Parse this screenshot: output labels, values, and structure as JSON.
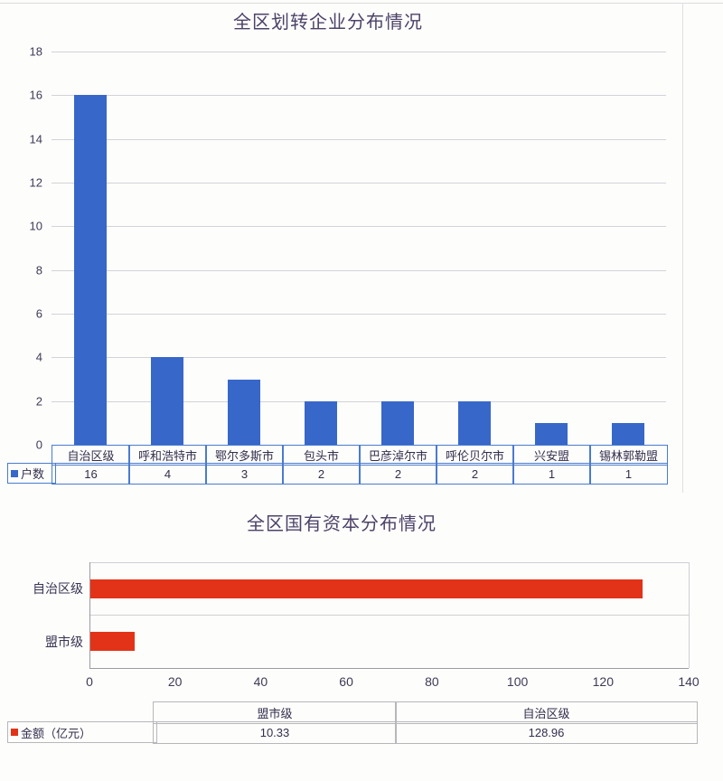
{
  "page": {
    "background": "#fdfdfc"
  },
  "chart_data": [
    {
      "type": "bar",
      "title": "全区划转企业分布情况",
      "categories": [
        "自治区级",
        "呼和浩特市",
        "鄂尔多斯市",
        "包头市",
        "巴彦淖尔市",
        "呼伦贝尔市",
        "兴安盟",
        "锡林郭勒盟"
      ],
      "series": [
        {
          "name": "户数",
          "values": [
            16,
            4,
            3,
            2,
            2,
            2,
            1,
            1
          ]
        }
      ],
      "table_values": [
        "16",
        "4",
        "3",
        "2",
        "2",
        "2",
        "1",
        "1"
      ],
      "ylim": [
        0,
        18
      ],
      "y_ticks": [
        0,
        2,
        4,
        6,
        8,
        10,
        12,
        14,
        16,
        18
      ],
      "grid": true,
      "legend_position": "bottom-table-left",
      "bar_color": "#3767c9",
      "table_border_color": "#4a7bce",
      "title_color": "#4d4268"
    },
    {
      "type": "bar-horizontal",
      "title": "全区国有资本分布情况",
      "categories": [
        "自治区级",
        "盟市级"
      ],
      "series": [
        {
          "name": "金额（亿元）",
          "values": [
            128.96,
            10.33
          ]
        }
      ],
      "table_categories": [
        "盟市级",
        "自治区级"
      ],
      "table_values": [
        "10.33",
        "128.96"
      ],
      "xlim": [
        0,
        140
      ],
      "x_ticks": [
        0,
        20,
        40,
        60,
        80,
        100,
        120,
        140
      ],
      "grid": false,
      "legend_position": "bottom-table-left",
      "bar_color": "#e23318",
      "table_border_color": "#b7b7bb",
      "title_color": "#4d4268"
    }
  ]
}
